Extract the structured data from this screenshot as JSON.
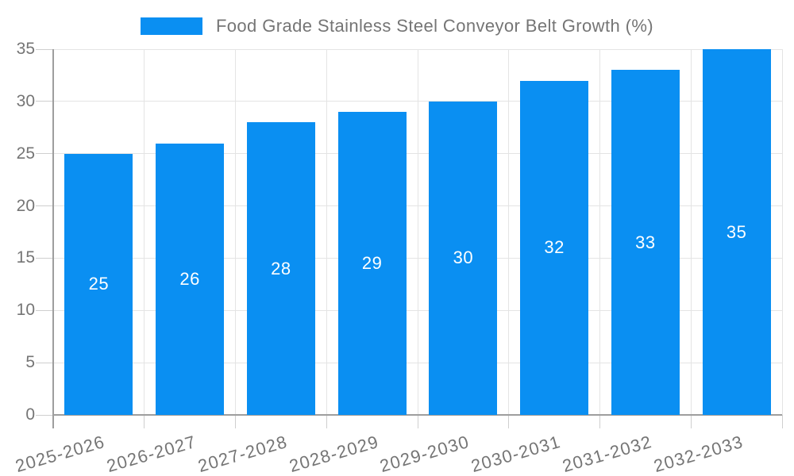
{
  "legend": {
    "label": "Food Grade Stainless Steel Conveyor Belt Growth (%)",
    "swatch_color": "#0a8ff2"
  },
  "chart_data": {
    "type": "bar",
    "title": "Food Grade Stainless Steel Conveyor Belt Growth (%)",
    "series_name": "Food Grade Stainless Steel Conveyor Belt Growth (%)",
    "categories": [
      "2025-2026",
      "2026-2027",
      "2027-2028",
      "2028-2029",
      "2029-2030",
      "2030-2031",
      "2031-2032",
      "2032-2033"
    ],
    "values": [
      25,
      26,
      28,
      29,
      30,
      32,
      33,
      35
    ],
    "value_labels_shown": [
      "25",
      "26",
      "28",
      "29",
      "30",
      "32",
      "33",
      "35"
    ],
    "value_label_position": "inside-center",
    "xlabel": "",
    "ylabel": "",
    "ylim": [
      0,
      35
    ],
    "yticks": [
      0,
      5,
      10,
      15,
      20,
      25,
      30,
      35
    ],
    "grid": "on",
    "legend_position": "top-center",
    "xtick_rotation_deg": -16
  },
  "style": {
    "bar_color": "#0a8ff2",
    "grid_color": "#e4e4e4",
    "axis_color": "#9e9e9e",
    "tick_color": "#cfcfcf",
    "text_color": "#757575",
    "value_label_color": "#ffffff",
    "background": "#ffffff"
  }
}
